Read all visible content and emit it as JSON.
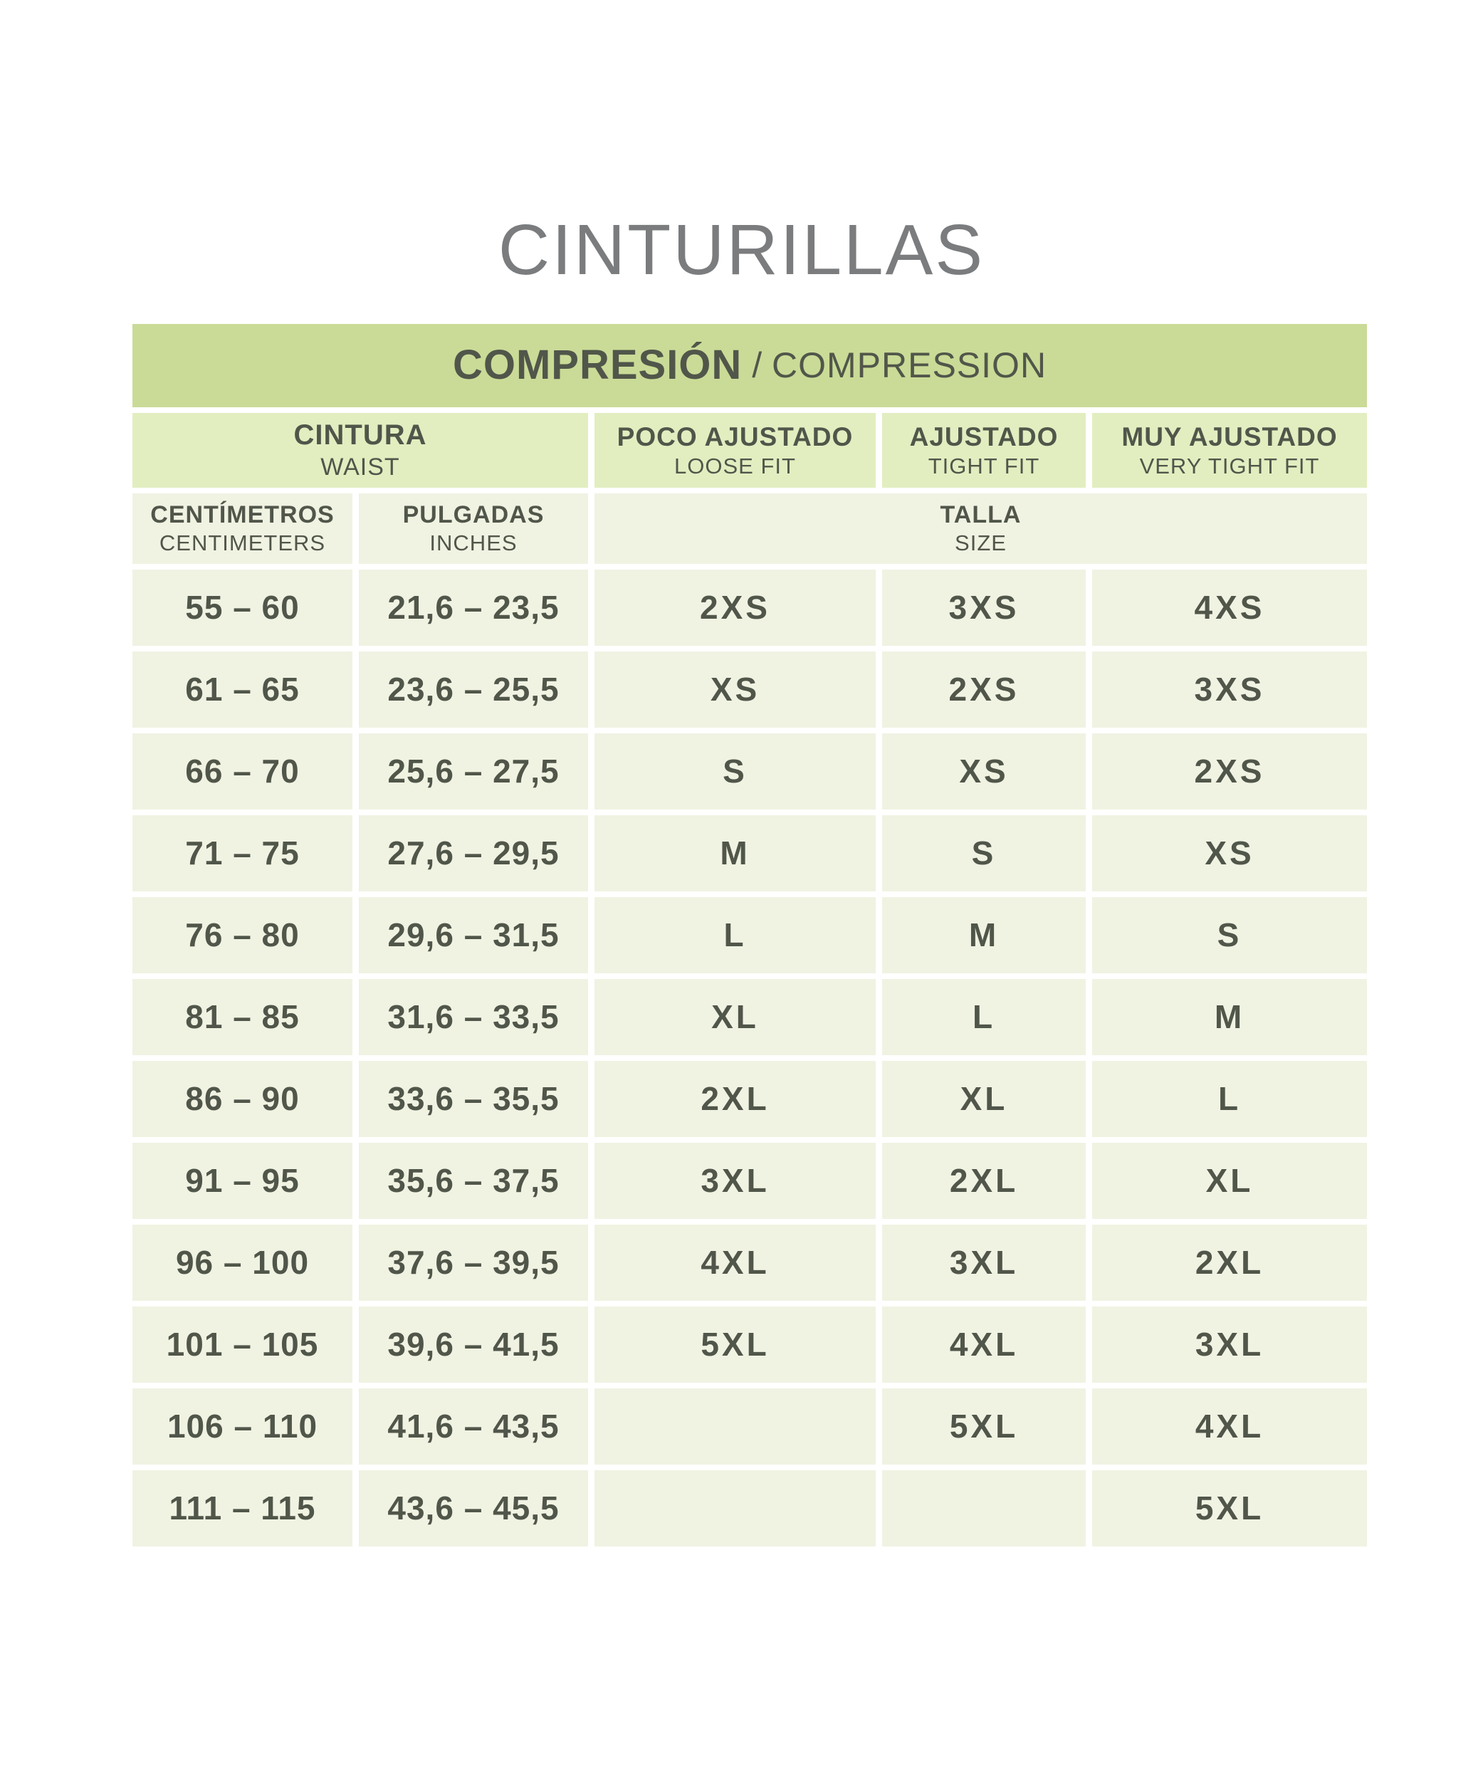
{
  "page": {
    "title": "CINTURILLAS"
  },
  "colors": {
    "banner_green": "#cadb97",
    "header_green": "#e2eec0",
    "cell_bg": "#f0f3e2",
    "text_dark": "#51564a",
    "title_gray": "#7a7c7e",
    "gap_white": "#ffffff"
  },
  "table": {
    "banner": {
      "title_es": "COMPRESIÓN",
      "sep": " / ",
      "title_en": "COMPRESSION"
    },
    "columns": {
      "cintura": {
        "es": "CINTURA",
        "en": "WAIST"
      },
      "poco_ajustado": {
        "es": "POCO AJUSTADO",
        "en": "LOOSE FIT"
      },
      "ajustado": {
        "es": "AJUSTADO",
        "en": "TIGHT FIT"
      },
      "muy_ajustado": {
        "es": "MUY AJUSTADO",
        "en": "VERY TIGHT FIT"
      },
      "centimetros": {
        "es": "CENTÍMETROS",
        "en": "CENTIMETERS"
      },
      "pulgadas": {
        "es": "PULGADAS",
        "en": "INCHES"
      },
      "talla": {
        "es": "TALLA",
        "en": "SIZE"
      }
    },
    "rows": [
      {
        "cm": "55 – 60",
        "in": "21,6 – 23,5",
        "loose": "2XS",
        "tight": "3XS",
        "very_tight": "4XS"
      },
      {
        "cm": "61 – 65",
        "in": "23,6 – 25,5",
        "loose": "XS",
        "tight": "2XS",
        "very_tight": "3XS"
      },
      {
        "cm": "66 – 70",
        "in": "25,6 – 27,5",
        "loose": "S",
        "tight": "XS",
        "very_tight": "2XS"
      },
      {
        "cm": "71 – 75",
        "in": "27,6 – 29,5",
        "loose": "M",
        "tight": "S",
        "very_tight": "XS"
      },
      {
        "cm": "76 – 80",
        "in": "29,6 – 31,5",
        "loose": "L",
        "tight": "M",
        "very_tight": "S"
      },
      {
        "cm": "81 – 85",
        "in": "31,6 – 33,5",
        "loose": "XL",
        "tight": "L",
        "very_tight": "M"
      },
      {
        "cm": "86 – 90",
        "in": "33,6 – 35,5",
        "loose": "2XL",
        "tight": "XL",
        "very_tight": "L"
      },
      {
        "cm": "91 – 95",
        "in": "35,6 – 37,5",
        "loose": "3XL",
        "tight": "2XL",
        "very_tight": "XL"
      },
      {
        "cm": "96 – 100",
        "in": "37,6 – 39,5",
        "loose": "4XL",
        "tight": "3XL",
        "very_tight": "2XL"
      },
      {
        "cm": "101 – 105",
        "in": "39,6 – 41,5",
        "loose": "5XL",
        "tight": "4XL",
        "very_tight": "3XL"
      },
      {
        "cm": "106 – 110",
        "in": "41,6 – 43,5",
        "loose": "",
        "tight": "5XL",
        "very_tight": "4XL"
      },
      {
        "cm": "111 – 115",
        "in": "43,6 – 45,5",
        "loose": "",
        "tight": "",
        "very_tight": "5XL"
      }
    ]
  }
}
